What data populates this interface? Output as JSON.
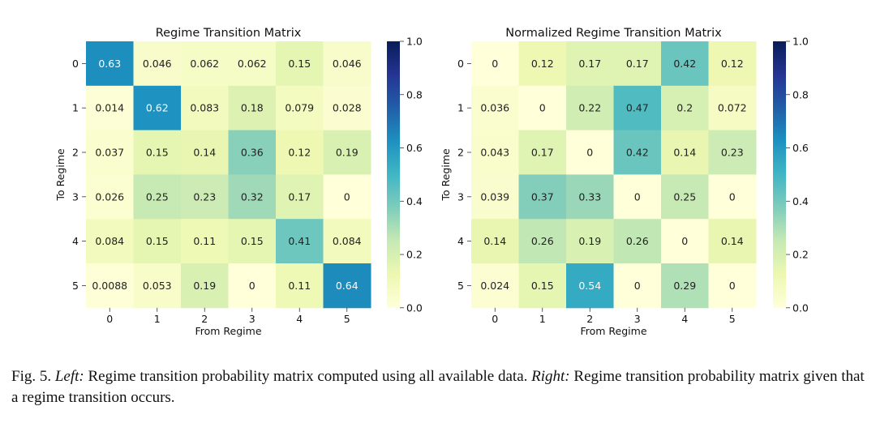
{
  "chart_data": [
    {
      "type": "heatmap",
      "title": "Regime Transition Matrix",
      "xlabel": "From Regime",
      "ylabel": "To Regime",
      "x_ticks": [
        "0",
        "1",
        "2",
        "3",
        "4",
        "5"
      ],
      "y_ticks": [
        "0",
        "1",
        "2",
        "3",
        "4",
        "5"
      ],
      "values": [
        [
          "0.63",
          "0.046",
          "0.062",
          "0.062",
          "0.15",
          "0.046"
        ],
        [
          "0.014",
          "0.62",
          "0.083",
          "0.18",
          "0.079",
          "0.028"
        ],
        [
          "0.037",
          "0.15",
          "0.14",
          "0.36",
          "0.12",
          "0.19"
        ],
        [
          "0.026",
          "0.25",
          "0.23",
          "0.32",
          "0.17",
          "0"
        ],
        [
          "0.084",
          "0.15",
          "0.11",
          "0.15",
          "0.41",
          "0.084"
        ],
        [
          "0.0088",
          "0.053",
          "0.19",
          "0",
          "0.11",
          "0.64"
        ]
      ],
      "colorbar": {
        "range": [
          0,
          1
        ],
        "ticks": [
          "0.0",
          "0.2",
          "0.4",
          "0.6",
          "0.8",
          "1.0"
        ],
        "colormap": "YlGnBu"
      }
    },
    {
      "type": "heatmap",
      "title": "Normalized Regime Transition Matrix",
      "xlabel": "From Regime",
      "ylabel": "To Regime",
      "x_ticks": [
        "0",
        "1",
        "2",
        "3",
        "4",
        "5"
      ],
      "y_ticks": [
        "0",
        "1",
        "2",
        "3",
        "4",
        "5"
      ],
      "values": [
        [
          "0",
          "0.12",
          "0.17",
          "0.17",
          "0.42",
          "0.12"
        ],
        [
          "0.036",
          "0",
          "0.22",
          "0.47",
          "0.2",
          "0.072"
        ],
        [
          "0.043",
          "0.17",
          "0",
          "0.42",
          "0.14",
          "0.23"
        ],
        [
          "0.039",
          "0.37",
          "0.33",
          "0",
          "0.25",
          "0"
        ],
        [
          "0.14",
          "0.26",
          "0.19",
          "0.26",
          "0",
          "0.14"
        ],
        [
          "0.024",
          "0.15",
          "0.54",
          "0",
          "0.29",
          "0"
        ]
      ],
      "colorbar": {
        "range": [
          0,
          1
        ],
        "ticks": [
          "0.0",
          "0.2",
          "0.4",
          "0.6",
          "0.8",
          "1.0"
        ],
        "colormap": "YlGnBu"
      }
    }
  ],
  "caption": {
    "label": "Fig. 5.",
    "left_tag": "Left:",
    "left_text": "Regime transition probability matrix computed using all available data.",
    "right_tag": "Right:",
    "right_text": "Regime transition probability matrix given that a regime transition occurs."
  }
}
